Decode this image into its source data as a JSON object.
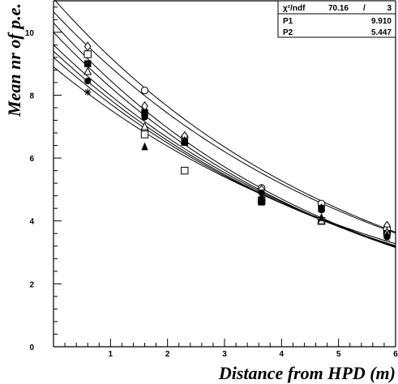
{
  "chart_data": {
    "type": "scatter",
    "xlabel": "Distance from HPD (m)",
    "ylabel": "Mean nr of p.e.",
    "xlim": [
      0,
      6
    ],
    "ylim": [
      0,
      11
    ],
    "x_ticks": [
      "1",
      "2",
      "3",
      "4",
      "5",
      "6"
    ],
    "y_ticks": [
      "0",
      "2",
      "4",
      "6",
      "8",
      "10"
    ],
    "grid": false,
    "stats_box": {
      "rows": [
        {
          "label": "χ²/ndf",
          "value": "70.16",
          "sep": "/",
          "value2": "3"
        },
        {
          "label": "P1",
          "value": "9.910"
        },
        {
          "label": "P2",
          "value": "5.447"
        }
      ]
    },
    "fit_function": "P1 * exp(-x / P2)",
    "series": [
      {
        "marker": "circle-open",
        "x": [
          1.6,
          2.3,
          3.65,
          4.7,
          5.85
        ],
        "y": [
          8.15,
          6.65,
          5.05,
          4.55,
          3.7
        ],
        "fit": [
          11.07,
          5.4
        ]
      },
      {
        "marker": "diamond-open",
        "x": [
          0.6,
          1.6,
          2.3,
          3.65,
          4.7,
          5.85
        ],
        "y": [
          9.55,
          7.65,
          6.7,
          5.0,
          4.4,
          3.85
        ],
        "fit": [
          10.65,
          5.55
        ]
      },
      {
        "marker": "square-open",
        "x": [
          0.6,
          1.6,
          2.3,
          3.65,
          4.7,
          5.85
        ],
        "y": [
          9.3,
          6.75,
          5.6,
          4.65,
          4.0,
          3.7
        ],
        "fit": [
          10.3,
          5.1
        ]
      },
      {
        "marker": "square-filled",
        "x": [
          0.6,
          1.6,
          2.3,
          3.65,
          4.7,
          5.85
        ],
        "y": [
          9.0,
          7.45,
          6.5,
          4.6,
          4.4,
          3.6
        ],
        "fit": [
          10.0,
          5.2
        ]
      },
      {
        "marker": "triangle-open",
        "x": [
          0.6,
          1.6,
          2.3,
          3.65,
          4.7,
          5.85
        ],
        "y": [
          8.75,
          7.0,
          6.55,
          4.75,
          4.0,
          3.65
        ],
        "fit": [
          9.6,
          5.45
        ]
      },
      {
        "marker": "circle-filled",
        "x": [
          0.6,
          1.6,
          2.3,
          3.65,
          4.7,
          5.85
        ],
        "y": [
          8.45,
          7.3,
          6.5,
          4.9,
          4.35,
          3.5
        ],
        "fit": [
          9.4,
          5.55
        ]
      },
      {
        "marker": "triangle-filled",
        "x": [
          1.6,
          3.65,
          4.7,
          5.85
        ],
        "y": [
          6.35,
          4.7,
          4.1,
          3.55
        ],
        "fit": [
          9.2,
          5.7
        ]
      },
      {
        "marker": "star",
        "x": [
          0.6,
          1.6,
          2.3,
          3.65,
          4.7,
          5.85
        ],
        "y": [
          8.1,
          7.35,
          6.55,
          4.7,
          4.35,
          3.45
        ],
        "fit": [
          8.9,
          6.0
        ]
      }
    ]
  }
}
